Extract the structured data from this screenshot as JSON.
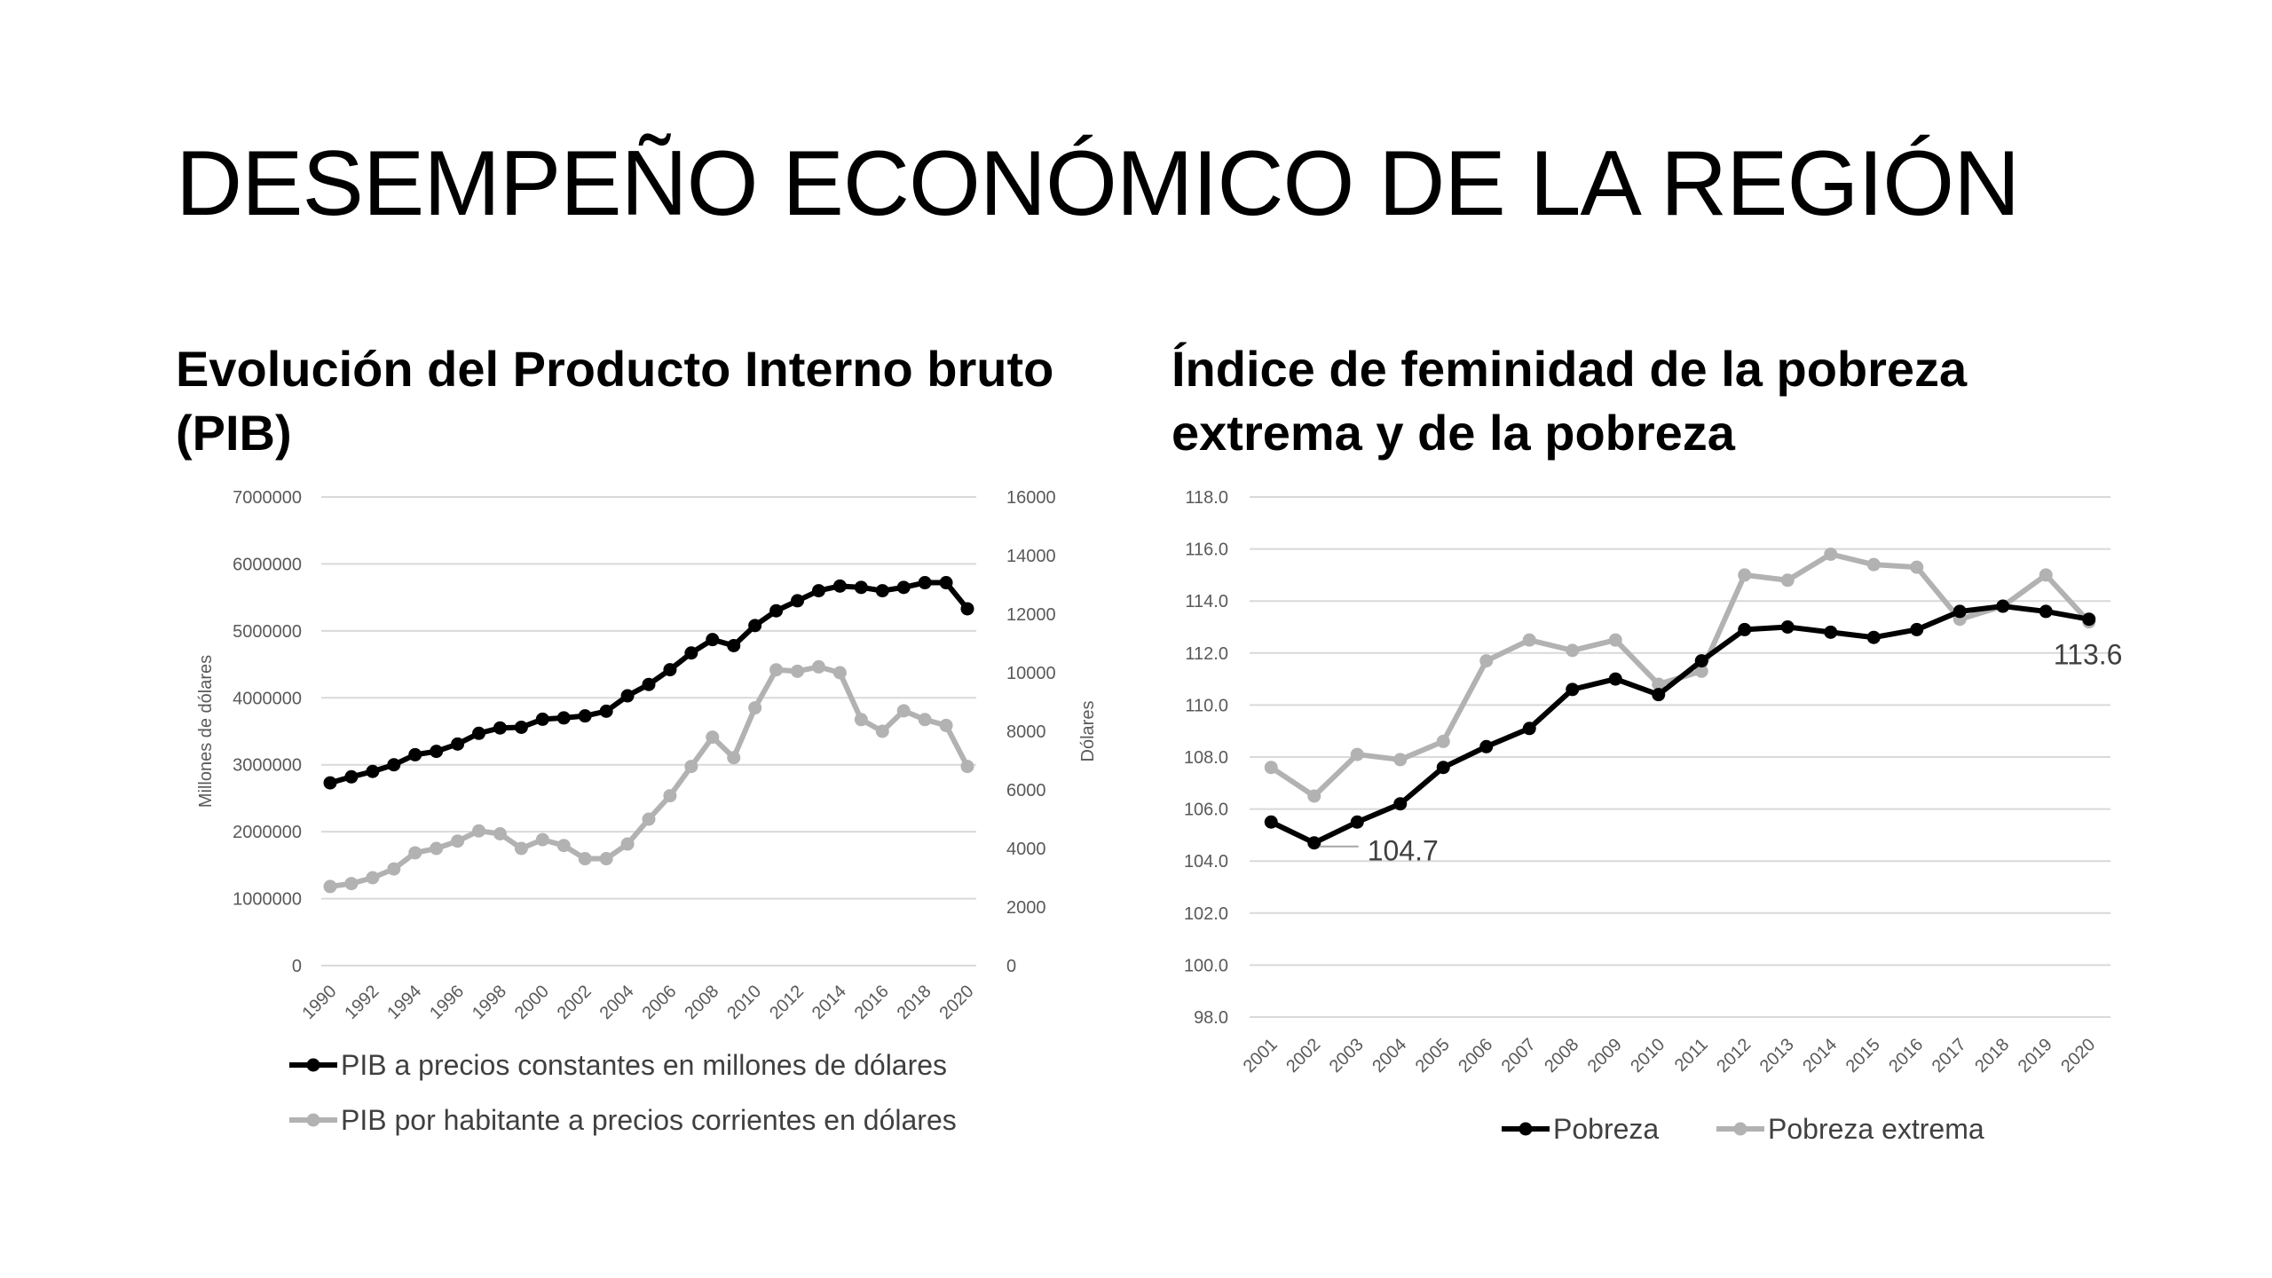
{
  "title": "DESEMPEÑO ECONÓMICO DE LA REGIÓN",
  "left_subtitle": "Evolución del Producto Interno bruto (PIB)",
  "right_subtitle": "Índice de feminidad de la pobreza extrema y de la pobreza",
  "chart_data": [
    {
      "type": "line",
      "title": "Evolución del Producto Interno bruto (PIB)",
      "ylabel": "Millones de dólares",
      "y2label": "Dólares",
      "ylim": [
        0,
        7000000
      ],
      "y2lim": [
        0,
        16000
      ],
      "yticks": [
        "0",
        "1000000",
        "2000000",
        "3000000",
        "4000000",
        "5000000",
        "6000000",
        "7000000"
      ],
      "y2ticks": [
        "0",
        "2000",
        "4000",
        "6000",
        "8000",
        "10000",
        "12000",
        "14000",
        "16000"
      ],
      "x": [
        1990,
        1991,
        1992,
        1993,
        1994,
        1995,
        1996,
        1997,
        1998,
        1999,
        2000,
        2001,
        2002,
        2003,
        2004,
        2005,
        2006,
        2007,
        2008,
        2009,
        2010,
        2011,
        2012,
        2013,
        2014,
        2015,
        2016,
        2017,
        2018,
        2019,
        2020
      ],
      "xticks": [
        "1990",
        "1992",
        "1994",
        "1996",
        "1998",
        "2000",
        "2002",
        "2004",
        "2006",
        "2008",
        "2010",
        "2012",
        "2014",
        "2016",
        "2018",
        "2020"
      ],
      "grid": true,
      "legend": "bottom",
      "series": [
        {
          "name": "PIB a precios constantes en millones de dólares",
          "axis": "left",
          "color": "#000000",
          "values": [
            2730000,
            2820000,
            2900000,
            3000000,
            3150000,
            3200000,
            3310000,
            3470000,
            3550000,
            3560000,
            3680000,
            3700000,
            3730000,
            3800000,
            4030000,
            4200000,
            4420000,
            4670000,
            4870000,
            4780000,
            5080000,
            5300000,
            5450000,
            5600000,
            5670000,
            5650000,
            5600000,
            5650000,
            5720000,
            5720000,
            5330000
          ]
        },
        {
          "name": "PIB por habitante a precios corrientes en dólares",
          "axis": "right",
          "color": "#b2b2b2",
          "values": [
            2700,
            2800,
            3000,
            3300,
            3850,
            4000,
            4250,
            4600,
            4500,
            4000,
            4300,
            4100,
            3650,
            3650,
            4150,
            5000,
            5800,
            6800,
            7800,
            7100,
            8800,
            10100,
            10050,
            10200,
            10000,
            8400,
            8000,
            8700,
            8400,
            8200,
            6800
          ]
        }
      ]
    },
    {
      "type": "line",
      "title": "Índice de feminidad de la pobreza extrema y de la pobreza",
      "ylim": [
        98.0,
        118.0
      ],
      "yticks": [
        "98.0",
        "100.0",
        "102.0",
        "104.0",
        "106.0",
        "108.0",
        "110.0",
        "112.0",
        "114.0",
        "116.0",
        "118.0"
      ],
      "x": [
        "2001",
        "2002",
        "2003",
        "2004",
        "2005",
        "2006",
        "2007",
        "2008",
        "2009",
        "2010",
        "2011",
        "2012",
        "2013",
        "2014",
        "2015",
        "2016",
        "2017",
        "2018",
        "2019",
        "2020"
      ],
      "grid": true,
      "legend": "bottom",
      "annotations": [
        "104.7",
        "113.6"
      ],
      "series": [
        {
          "name": "Pobreza",
          "color": "#000000",
          "values": [
            105.5,
            104.7,
            105.5,
            106.2,
            107.6,
            108.4,
            109.1,
            110.6,
            111.0,
            110.4,
            111.7,
            112.9,
            113.0,
            112.8,
            112.6,
            112.9,
            113.6,
            113.8,
            113.6,
            113.3
          ]
        },
        {
          "name": "Pobreza extrema",
          "color": "#b2b2b2",
          "values": [
            107.6,
            106.5,
            108.1,
            107.9,
            108.6,
            111.7,
            112.5,
            112.1,
            112.5,
            110.8,
            111.3,
            115.0,
            114.8,
            115.8,
            115.4,
            115.3,
            113.3,
            113.8,
            115.0,
            113.2
          ]
        }
      ]
    }
  ]
}
